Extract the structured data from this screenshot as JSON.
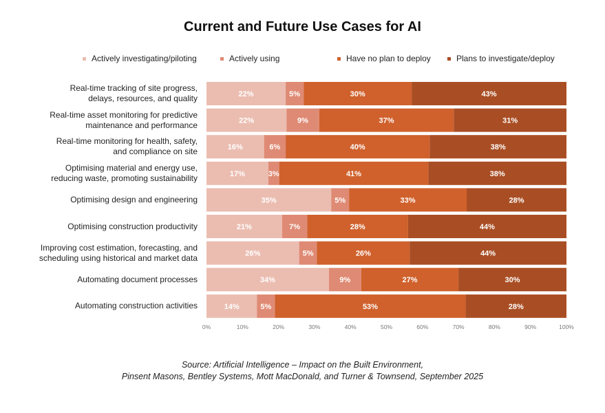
{
  "chart_data": {
    "type": "bar",
    "orientation": "horizontal",
    "stacked": true,
    "title": "Current and Future Use Cases for AI",
    "categories": [
      "Real-time tracking of site progress,\ndelays, resources, and quality",
      "Real-time asset monitoring for predictive\nmaintenance and performance",
      "Real-time monitoring for health, safety,\nand compliance on site",
      "Optimising material and energy use,\nreducing waste, promoting sustainability",
      "Optimising design and engineering",
      "Optimising construction productivity",
      "Improving cost estimation, forecasting, and\nscheduling using historical and market data",
      "Automating document processes",
      "Automating construction activities"
    ],
    "series": [
      {
        "name": "Actively investigating/piloting",
        "color": "#ebbdb1",
        "values": [
          22,
          22,
          16,
          17,
          35,
          21,
          26,
          34,
          14
        ]
      },
      {
        "name": "Actively using",
        "color": "#df8a74",
        "values": [
          5,
          9,
          6,
          3,
          5,
          7,
          5,
          9,
          5
        ]
      },
      {
        "name": "Have no plan to deploy",
        "color": "#d0612c",
        "values": [
          30,
          37,
          40,
          41,
          33,
          28,
          26,
          27,
          53
        ]
      },
      {
        "name": "Plans to investigate/deploy",
        "color": "#a94e24",
        "values": [
          43,
          31,
          38,
          38,
          28,
          44,
          44,
          30,
          28
        ]
      }
    ],
    "xlim": [
      0,
      100
    ],
    "xticks": [
      "0%",
      "10%",
      "20%",
      "30%",
      "40%",
      "50%",
      "60%",
      "70%",
      "80%",
      "90%",
      "100%"
    ],
    "value_suffix": "%",
    "legend": "top",
    "grid": false
  },
  "source": {
    "line1": "Source: Artificial Intelligence – Impact on the Built Environment,",
    "line2": "Pinsent Masons, Bentley Systems, Mott MacDonald, and Turner & Townsend, September 2025"
  }
}
